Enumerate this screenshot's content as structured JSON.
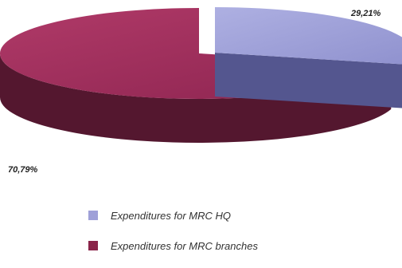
{
  "chart_data": {
    "type": "pie",
    "title": "",
    "categories": [
      "Expenditures for MRC HQ",
      "Expenditures for MRC branches"
    ],
    "values": [
      29.21,
      70.79
    ],
    "value_labels": [
      "29,21%",
      "70,79%"
    ],
    "legend_position": "bottom",
    "three_d": true,
    "exploded": true,
    "colors": {
      "hq_top": "#9fa0d8",
      "hq_side": "#54568f",
      "branches_top": "#a2305e",
      "branches_side": "#54172f"
    }
  },
  "legend": {
    "items": [
      {
        "label": "Expenditures for MRC HQ",
        "color": "#9fa0d8"
      },
      {
        "label": "Expenditures for MRC branches",
        "color": "#8a2449"
      }
    ]
  }
}
